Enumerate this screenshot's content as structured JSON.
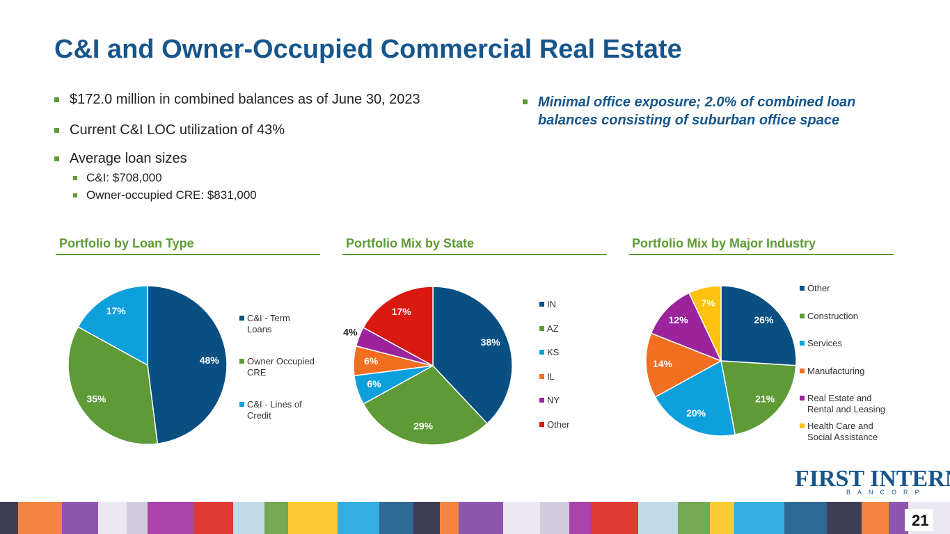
{
  "title": "C&I and Owner-Occupied Commercial Real Estate",
  "bullets": [
    "$172.0 million in combined balances as of June 30, 2023",
    "Current C&I LOC utilization of 43%",
    "Average loan sizes"
  ],
  "sub_bullets": [
    "C&I: $708,000",
    "Owner-occupied CRE: $831,000"
  ],
  "right_bullet": "Minimal office exposure; 2.0% of combined loan balances consisting of suburban office space",
  "logo": {
    "name": "FIRST INTERNET",
    "tagline": "BANCORP"
  },
  "page_number": "21",
  "chart_data": [
    {
      "type": "pie",
      "title": "Portfolio by Loan Type",
      "categories": [
        "C&I - Term Loans",
        "Owner Occupied CRE",
        "C&I - Lines of Credit"
      ],
      "values": [
        48,
        35,
        17
      ],
      "value_labels": [
        "48%",
        "35%",
        "17%"
      ],
      "colors": [
        "#0a4f82",
        "#5e9a35",
        "#0ea0dc"
      ]
    },
    {
      "type": "pie",
      "title": "Portfolio Mix by State",
      "categories": [
        "IN",
        "AZ",
        "KS",
        "IL",
        "NY",
        "Other"
      ],
      "values": [
        38,
        29,
        6,
        6,
        4,
        17
      ],
      "value_labels": [
        "38%",
        "29%",
        "6%",
        "6%",
        "4%",
        "17%"
      ],
      "colors": [
        "#0a4f82",
        "#5e9a35",
        "#0ea0dc",
        "#f26f21",
        "#9b239b",
        "#d7190f"
      ]
    },
    {
      "type": "pie",
      "title": "Portfolio Mix by Major Industry",
      "categories": [
        "Other",
        "Construction",
        "Services",
        "Manufacturing",
        "Real Estate and Rental and Leasing",
        "Health Care and Social Assistance"
      ],
      "values": [
        26,
        21,
        20,
        14,
        12,
        7
      ],
      "value_labels": [
        "26%",
        "21%",
        "20%",
        "14%",
        "12%",
        "7%"
      ],
      "colors": [
        "#0a4f82",
        "#5e9a35",
        "#0ea0dc",
        "#f26f21",
        "#9b239b",
        "#fdc10e"
      ]
    }
  ]
}
